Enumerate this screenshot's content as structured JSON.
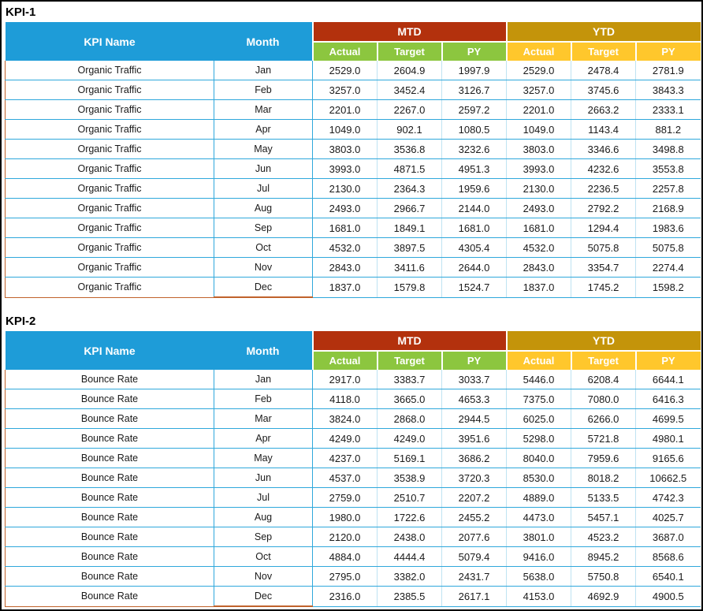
{
  "colors": {
    "header_blue": "#1E9CD8",
    "mtd_red": "#B3310D",
    "ytd_gold": "#C4940A",
    "sub_green": "#8CC63F",
    "sub_yellow": "#FFC72C",
    "row_border_cyan": "#2FA8DC",
    "accent_orange": "#C0622B"
  },
  "tables": [
    {
      "title": "KPI-1",
      "kpi_name_header": "KPI Name",
      "month_header": "Month",
      "mtd_label": "MTD",
      "ytd_label": "YTD",
      "sub_headers": [
        "Actual",
        "Target",
        "PY"
      ],
      "kpi_name": "Organic Traffic",
      "rows": [
        {
          "month": "Jan",
          "mtd": [
            "2529.0",
            "2604.9",
            "1997.9"
          ],
          "ytd": [
            "2529.0",
            "2478.4",
            "2781.9"
          ]
        },
        {
          "month": "Feb",
          "mtd": [
            "3257.0",
            "3452.4",
            "3126.7"
          ],
          "ytd": [
            "3257.0",
            "3745.6",
            "3843.3"
          ]
        },
        {
          "month": "Mar",
          "mtd": [
            "2201.0",
            "2267.0",
            "2597.2"
          ],
          "ytd": [
            "2201.0",
            "2663.2",
            "2333.1"
          ]
        },
        {
          "month": "Apr",
          "mtd": [
            "1049.0",
            "902.1",
            "1080.5"
          ],
          "ytd": [
            "1049.0",
            "1143.4",
            "881.2"
          ]
        },
        {
          "month": "May",
          "mtd": [
            "3803.0",
            "3536.8",
            "3232.6"
          ],
          "ytd": [
            "3803.0",
            "3346.6",
            "3498.8"
          ]
        },
        {
          "month": "Jun",
          "mtd": [
            "3993.0",
            "4871.5",
            "4951.3"
          ],
          "ytd": [
            "3993.0",
            "4232.6",
            "3553.8"
          ]
        },
        {
          "month": "Jul",
          "mtd": [
            "2130.0",
            "2364.3",
            "1959.6"
          ],
          "ytd": [
            "2130.0",
            "2236.5",
            "2257.8"
          ]
        },
        {
          "month": "Aug",
          "mtd": [
            "2493.0",
            "2966.7",
            "2144.0"
          ],
          "ytd": [
            "2493.0",
            "2792.2",
            "2168.9"
          ]
        },
        {
          "month": "Sep",
          "mtd": [
            "1681.0",
            "1849.1",
            "1681.0"
          ],
          "ytd": [
            "1681.0",
            "1294.4",
            "1983.6"
          ]
        },
        {
          "month": "Oct",
          "mtd": [
            "4532.0",
            "3897.5",
            "4305.4"
          ],
          "ytd": [
            "4532.0",
            "5075.8",
            "5075.8"
          ]
        },
        {
          "month": "Nov",
          "mtd": [
            "2843.0",
            "3411.6",
            "2644.0"
          ],
          "ytd": [
            "2843.0",
            "3354.7",
            "2274.4"
          ]
        },
        {
          "month": "Dec",
          "mtd": [
            "1837.0",
            "1579.8",
            "1524.7"
          ],
          "ytd": [
            "1837.0",
            "1745.2",
            "1598.2"
          ]
        }
      ]
    },
    {
      "title": "KPI-2",
      "kpi_name_header": "KPI Name",
      "month_header": "Month",
      "mtd_label": "MTD",
      "ytd_label": "YTD",
      "sub_headers": [
        "Actual",
        "Target",
        "PY"
      ],
      "kpi_name": "Bounce Rate",
      "rows": [
        {
          "month": "Jan",
          "mtd": [
            "2917.0",
            "3383.7",
            "3033.7"
          ],
          "ytd": [
            "5446.0",
            "6208.4",
            "6644.1"
          ]
        },
        {
          "month": "Feb",
          "mtd": [
            "4118.0",
            "3665.0",
            "4653.3"
          ],
          "ytd": [
            "7375.0",
            "7080.0",
            "6416.3"
          ]
        },
        {
          "month": "Mar",
          "mtd": [
            "3824.0",
            "2868.0",
            "2944.5"
          ],
          "ytd": [
            "6025.0",
            "6266.0",
            "4699.5"
          ]
        },
        {
          "month": "Apr",
          "mtd": [
            "4249.0",
            "4249.0",
            "3951.6"
          ],
          "ytd": [
            "5298.0",
            "5721.8",
            "4980.1"
          ]
        },
        {
          "month": "May",
          "mtd": [
            "4237.0",
            "5169.1",
            "3686.2"
          ],
          "ytd": [
            "8040.0",
            "7959.6",
            "9165.6"
          ]
        },
        {
          "month": "Jun",
          "mtd": [
            "4537.0",
            "3538.9",
            "3720.3"
          ],
          "ytd": [
            "8530.0",
            "8018.2",
            "10662.5"
          ]
        },
        {
          "month": "Jul",
          "mtd": [
            "2759.0",
            "2510.7",
            "2207.2"
          ],
          "ytd": [
            "4889.0",
            "5133.5",
            "4742.3"
          ]
        },
        {
          "month": "Aug",
          "mtd": [
            "1980.0",
            "1722.6",
            "2455.2"
          ],
          "ytd": [
            "4473.0",
            "5457.1",
            "4025.7"
          ]
        },
        {
          "month": "Sep",
          "mtd": [
            "2120.0",
            "2438.0",
            "2077.6"
          ],
          "ytd": [
            "3801.0",
            "4523.2",
            "3687.0"
          ]
        },
        {
          "month": "Oct",
          "mtd": [
            "4884.0",
            "4444.4",
            "5079.4"
          ],
          "ytd": [
            "9416.0",
            "8945.2",
            "8568.6"
          ]
        },
        {
          "month": "Nov",
          "mtd": [
            "2795.0",
            "3382.0",
            "2431.7"
          ],
          "ytd": [
            "5638.0",
            "5750.8",
            "6540.1"
          ]
        },
        {
          "month": "Dec",
          "mtd": [
            "2316.0",
            "2385.5",
            "2617.1"
          ],
          "ytd": [
            "4153.0",
            "4692.9",
            "4900.5"
          ]
        }
      ]
    }
  ]
}
